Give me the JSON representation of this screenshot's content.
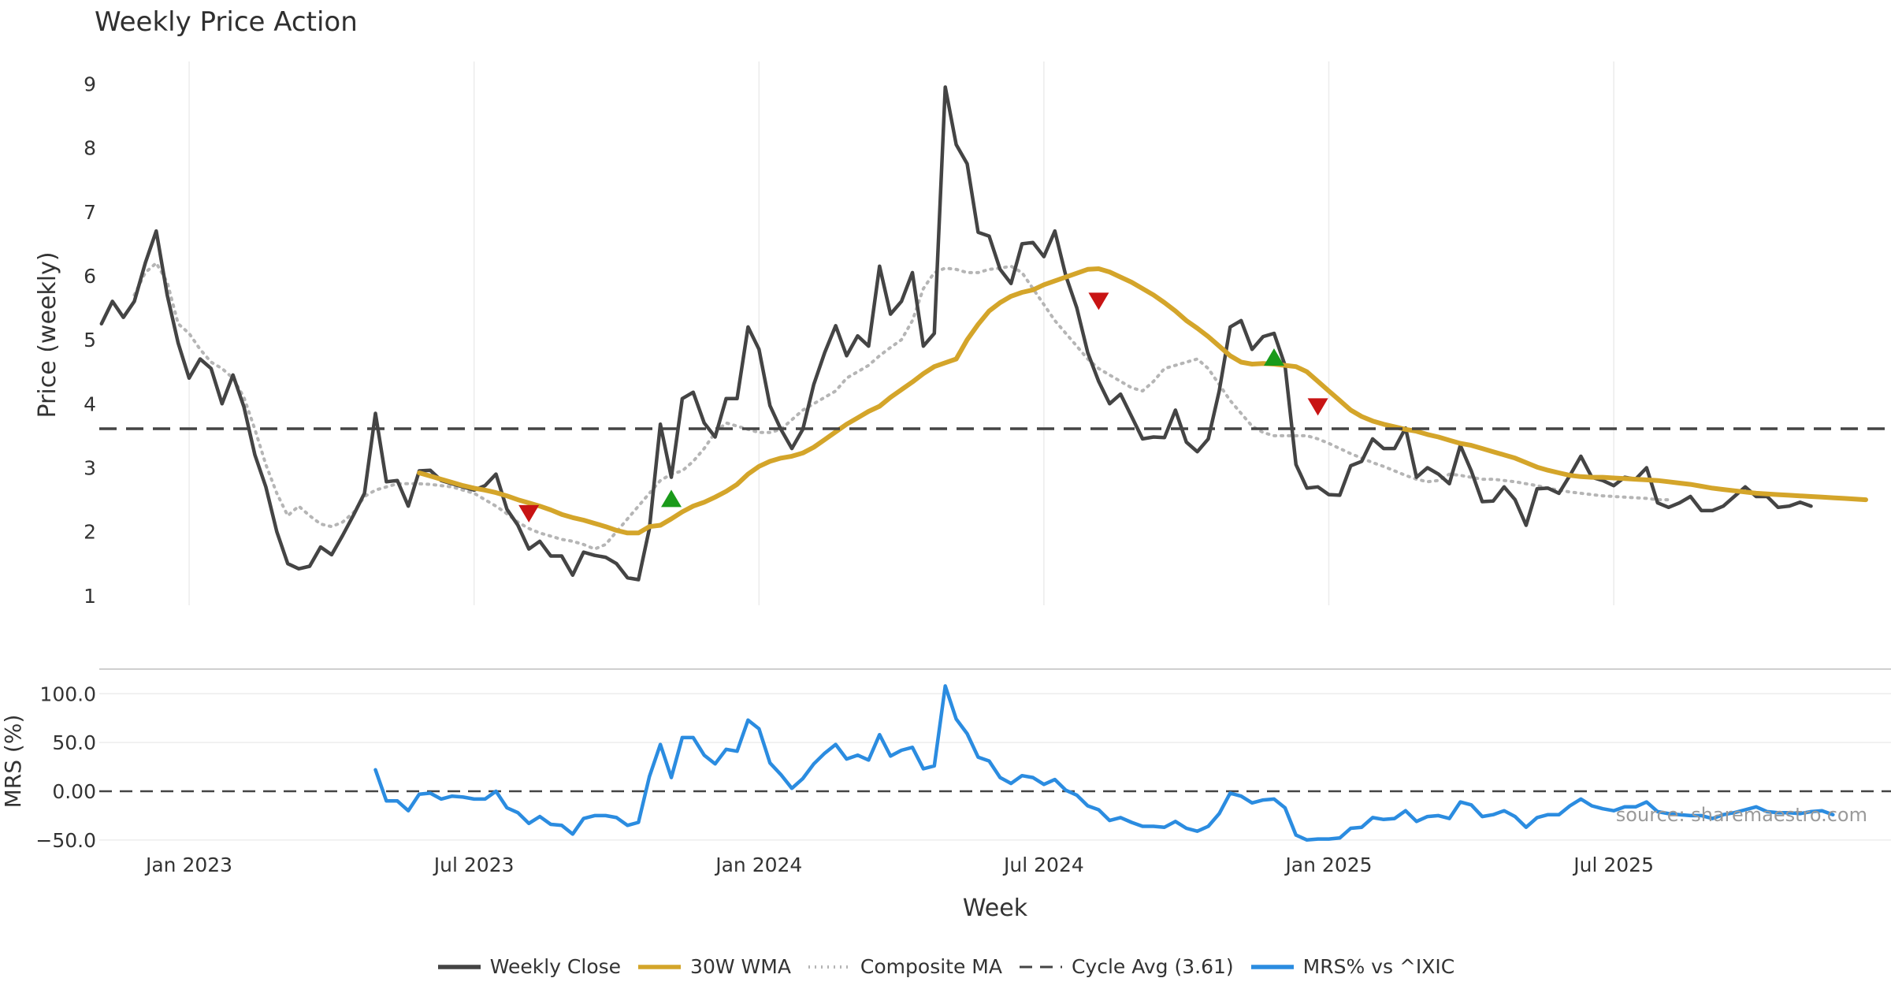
{
  "title": "Weekly Price Action",
  "watermark": "source: sharemaestro.com",
  "colors": {
    "weekly_close": "#444444",
    "wma30": "#d4a52a",
    "composite_ma": "#b5b5b5",
    "cycle_avg": "#444444",
    "mrs": "#2b8ce0",
    "signal_up": "#1a9a1a",
    "signal_down": "#c81414"
  },
  "legend": [
    {
      "label": "Weekly Close",
      "style": "solid",
      "color_key": "weekly_close"
    },
    {
      "label": "30W WMA",
      "style": "solid",
      "color_key": "wma30"
    },
    {
      "label": "Composite MA",
      "style": "dotted",
      "color_key": "composite_ma"
    },
    {
      "label": "Cycle Avg (3.61)",
      "style": "dashed",
      "color_key": "cycle_avg"
    },
    {
      "label": "MRS% vs ^IXIC",
      "style": "solid",
      "color_key": "mrs"
    }
  ],
  "chart_data": {
    "type": "line",
    "title": "Weekly Price Action",
    "xlabel": "Week",
    "x_tick_labels": [
      "Jan 2023",
      "Jul 2023",
      "Jan 2024",
      "Jul 2024",
      "Jan 2025",
      "Jul 2025"
    ],
    "x_tick_weeks": [
      10,
      36,
      62,
      88,
      114,
      140
    ],
    "x_range_weeks": [
      1.8,
      165.3
    ],
    "price_panel": {
      "ylabel": "Price (weekly)",
      "ylim": [
        0.85,
        9.35
      ],
      "yticks": [
        "1",
        "2",
        "3",
        "4",
        "5",
        "6",
        "7",
        "8",
        "9"
      ],
      "cycle_avg": 3.61,
      "series": [
        {
          "name": "Weekly Close",
          "start_week": 2,
          "values": [
            5.25,
            5.6,
            5.35,
            5.6,
            6.2,
            6.7,
            5.7,
            4.95,
            4.4,
            4.7,
            4.55,
            4.0,
            4.45,
            3.95,
            3.2,
            2.7,
            2.0,
            1.5,
            1.42,
            1.46,
            1.76,
            1.64,
            1.94,
            2.26,
            2.6,
            3.85,
            2.78,
            2.8,
            2.4,
            2.95,
            2.96,
            2.8,
            2.75,
            2.7,
            2.65,
            2.72,
            2.9,
            2.35,
            2.1,
            1.73,
            1.85,
            1.62,
            1.62,
            1.32,
            1.68,
            1.63,
            1.6,
            1.5,
            1.28,
            1.25,
            2.05,
            3.68,
            2.85,
            4.08,
            4.18,
            3.7,
            3.48,
            4.08,
            4.08,
            5.2,
            4.85,
            3.97,
            3.6,
            3.3,
            3.6,
            4.3,
            4.8,
            5.22,
            4.75,
            5.06,
            4.9,
            6.15,
            5.4,
            5.6,
            6.05,
            4.9,
            5.1,
            8.95,
            8.05,
            7.75,
            6.68,
            6.62,
            6.1,
            5.88,
            6.5,
            6.52,
            6.3,
            6.7,
            6.0,
            5.5,
            4.8,
            4.35,
            4.0,
            4.15,
            3.8,
            3.45,
            3.48,
            3.47,
            3.9,
            3.4,
            3.25,
            3.45,
            4.2,
            5.2,
            5.3,
            4.85,
            5.05,
            5.1,
            4.6,
            3.05,
            2.68,
            2.7,
            2.58,
            2.57,
            3.03,
            3.1,
            3.45,
            3.3,
            3.3,
            3.62,
            2.85,
            3.0,
            2.9,
            2.75,
            3.35,
            2.95,
            2.47,
            2.48,
            2.7,
            2.5,
            2.1,
            2.67,
            2.68,
            2.6,
            2.88,
            3.18,
            2.85,
            2.8,
            2.72,
            2.85,
            2.82,
            3.0,
            2.45,
            2.38,
            2.45,
            2.55,
            2.33,
            2.33,
            2.4,
            2.55,
            2.7,
            2.55,
            2.55,
            2.38,
            2.4,
            2.46,
            2.4
          ]
        },
        {
          "name": "30W WMA",
          "start_week": 31,
          "values": [
            2.92,
            2.87,
            2.82,
            2.77,
            2.72,
            2.68,
            2.65,
            2.61,
            2.56,
            2.5,
            2.45,
            2.4,
            2.34,
            2.27,
            2.22,
            2.18,
            2.13,
            2.08,
            2.02,
            1.98,
            1.98,
            2.08,
            2.1,
            2.2,
            2.31,
            2.4,
            2.46,
            2.54,
            2.63,
            2.74,
            2.9,
            3.02,
            3.1,
            3.15,
            3.18,
            3.23,
            3.32,
            3.44,
            3.56,
            3.68,
            3.78,
            3.88,
            3.96,
            4.1,
            4.22,
            4.34,
            4.47,
            4.58,
            4.64,
            4.7,
            5.0,
            5.24,
            5.45,
            5.58,
            5.68,
            5.74,
            5.78,
            5.86,
            5.92,
            5.98,
            6.04,
            6.1,
            6.11,
            6.06,
            5.98,
            5.9,
            5.8,
            5.7,
            5.58,
            5.45,
            5.3,
            5.18,
            5.05,
            4.9,
            4.75,
            4.65,
            4.62,
            4.63,
            4.62,
            4.6,
            4.58,
            4.5,
            4.35,
            4.2,
            4.05,
            3.9,
            3.8,
            3.73,
            3.68,
            3.64,
            3.6,
            3.57,
            3.52,
            3.48,
            3.43,
            3.38,
            3.35,
            3.3,
            3.25,
            3.2,
            3.15,
            3.08,
            3.01,
            2.96,
            2.92,
            2.88,
            2.86,
            2.85,
            2.85,
            2.84,
            2.83,
            2.82,
            2.81,
            2.8,
            2.78,
            2.76,
            2.74,
            2.71,
            2.68,
            2.66,
            2.64,
            2.62,
            2.6,
            2.59,
            2.58,
            2.57,
            2.56,
            2.55,
            2.54,
            2.53,
            2.52,
            2.51,
            2.5
          ]
        },
        {
          "name": "Composite MA",
          "start_week": 5,
          "values": [
            5.7,
            6.05,
            6.2,
            5.9,
            5.25,
            5.1,
            4.85,
            4.65,
            4.55,
            4.4,
            4.1,
            3.6,
            3.05,
            2.6,
            2.25,
            2.4,
            2.25,
            2.12,
            2.08,
            2.15,
            2.3,
            2.55,
            2.65,
            2.7,
            2.75,
            2.75,
            2.75,
            2.74,
            2.72,
            2.7,
            2.65,
            2.6,
            2.5,
            2.4,
            2.28,
            2.15,
            2.05,
            1.98,
            1.93,
            1.88,
            1.85,
            1.8,
            1.73,
            1.8,
            2.0,
            2.2,
            2.4,
            2.6,
            2.8,
            2.9,
            2.95,
            3.1,
            3.3,
            3.55,
            3.7,
            3.65,
            3.6,
            3.55,
            3.55,
            3.6,
            3.75,
            3.9,
            4.0,
            4.1,
            4.2,
            4.4,
            4.5,
            4.6,
            4.75,
            4.88,
            5.0,
            5.3,
            5.8,
            6.05,
            6.12,
            6.1,
            6.05,
            6.05,
            6.1,
            6.12,
            6.15,
            6.05,
            5.8,
            5.55,
            5.3,
            5.1,
            4.9,
            4.7,
            4.55,
            4.45,
            4.35,
            4.25,
            4.2,
            4.35,
            4.55,
            4.6,
            4.65,
            4.7,
            4.55,
            4.3,
            4.05,
            3.85,
            3.65,
            3.55,
            3.5,
            3.5,
            3.5,
            3.5,
            3.45,
            3.38,
            3.3,
            3.22,
            3.15,
            3.08,
            3.02,
            2.95,
            2.88,
            2.82,
            2.78,
            2.8,
            2.9,
            2.88,
            2.85,
            2.82,
            2.82,
            2.8,
            2.78,
            2.75,
            2.72,
            2.68,
            2.65,
            2.62,
            2.6,
            2.58,
            2.56,
            2.55,
            2.54,
            2.53,
            2.52,
            2.5,
            2.5
          ]
        }
      ],
      "signals": [
        {
          "week": 41,
          "price": 2.28,
          "direction": "down"
        },
        {
          "week": 54,
          "price": 2.52,
          "direction": "up"
        },
        {
          "week": 93,
          "price": 5.6,
          "direction": "down"
        },
        {
          "week": 109,
          "price": 4.73,
          "direction": "up"
        },
        {
          "week": 113,
          "price": 3.95,
          "direction": "down"
        }
      ]
    },
    "mrs_panel": {
      "ylabel": "MRS (%)",
      "ylim": [
        -55,
        118
      ],
      "yticks": [
        "100.0",
        "50.0",
        "0.00",
        "−50.0"
      ],
      "ytick_values": [
        100,
        50,
        0,
        -50
      ],
      "reference": 0,
      "series": [
        {
          "name": "MRS% vs ^IXIC",
          "start_week": 27,
          "values": [
            22,
            -10,
            -10,
            -20,
            -3,
            -2,
            -8,
            -5,
            -6,
            -8,
            -8,
            0,
            -17,
            -22,
            -33,
            -26,
            -34,
            -35,
            -44,
            -28,
            -25,
            -25,
            -27,
            -35,
            -32,
            15,
            48,
            14,
            55,
            55,
            37,
            28,
            43,
            41,
            73,
            64,
            29,
            17,
            3,
            13,
            28,
            39,
            48,
            33,
            37,
            32,
            58,
            36,
            42,
            45,
            23,
            26,
            108,
            74,
            59,
            35,
            31,
            14,
            8,
            16,
            14,
            7,
            12,
            1,
            -4,
            -15,
            -19,
            -30,
            -27,
            -32,
            -36,
            -36,
            -37,
            -31,
            -38,
            -41,
            -36,
            -23,
            -2,
            -5,
            -12,
            -9,
            -8,
            -17,
            -45,
            -50,
            -49,
            -49,
            -48,
            -38,
            -37,
            -27,
            -29,
            -28,
            -20,
            -31,
            -26,
            -25,
            -28,
            -11,
            -14,
            -26,
            -24,
            -20,
            -26,
            -37,
            -27,
            -24,
            -24,
            -15,
            -8,
            -15,
            -18,
            -20,
            -16,
            -16,
            -11,
            -21,
            -23,
            -24,
            -25,
            -25,
            -28,
            -24,
            -22,
            -19,
            -16,
            -21,
            -22,
            -22,
            -23,
            -21,
            -20,
            -24
          ]
        }
      ]
    }
  }
}
